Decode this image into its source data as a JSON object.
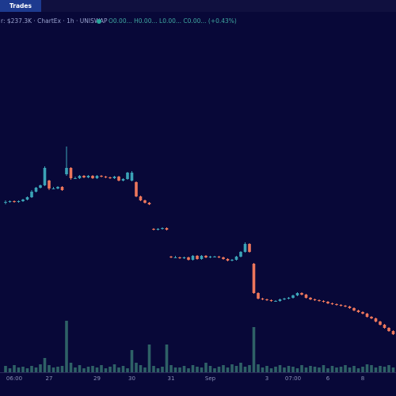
{
  "chart_data": {
    "type": "candlestick",
    "tab": "Trades",
    "title": "r: $237.3K · ChartEx · 1h · UNISWAP",
    "subtitle": "O0.00... H0.00... L0.00... C0.00... (+0.43%)",
    "up_color": "#3ba3b7",
    "down_color": "#ec765c",
    "volume_color": "#2e6166",
    "ylim": [
      0,
      440
    ],
    "vlim": [
      0,
      70
    ],
    "categories": [
      null,
      null,
      "06:00",
      null,
      null,
      null,
      null,
      null,
      null,
      null,
      "27",
      null,
      null,
      null,
      null,
      null,
      null,
      null,
      null,
      null,
      null,
      "29",
      null,
      null,
      null,
      null,
      null,
      null,
      null,
      "30",
      null,
      null,
      null,
      null,
      null,
      null,
      null,
      null,
      "31",
      null,
      null,
      null,
      null,
      null,
      null,
      null,
      null,
      "Sep",
      null,
      null,
      null,
      null,
      null,
      null,
      null,
      null,
      null,
      null,
      null,
      null,
      "3",
      null,
      null,
      null,
      null,
      null,
      "07:00",
      null,
      null,
      null,
      null,
      null,
      null,
      null,
      "6",
      null,
      null,
      null,
      null,
      null,
      null,
      null,
      "8",
      null,
      null,
      null,
      null,
      null,
      null,
      null
    ],
    "ohlc": [
      [
        224,
        227,
        222,
        225
      ],
      [
        225,
        227,
        224,
        226
      ],
      [
        226,
        227,
        224,
        225
      ],
      [
        225,
        227,
        224,
        226
      ],
      [
        226,
        229,
        225,
        228
      ],
      [
        228,
        232,
        227,
        231
      ],
      [
        231,
        240,
        230,
        238
      ],
      [
        238,
        244,
        237,
        243
      ],
      [
        243,
        247,
        242,
        246
      ],
      [
        246,
        270,
        245,
        268
      ],
      [
        252,
        253,
        240,
        242
      ],
      [
        242,
        244,
        241,
        242
      ],
      [
        242,
        245,
        241,
        244
      ],
      [
        244,
        245,
        239,
        240
      ],
      [
        260,
        295,
        258,
        268
      ],
      [
        268,
        269,
        253,
        255
      ],
      [
        255,
        257,
        254,
        255
      ],
      [
        255,
        259,
        254,
        258
      ],
      [
        258,
        259,
        255,
        256
      ],
      [
        256,
        259,
        255,
        258
      ],
      [
        258,
        259,
        254,
        255
      ],
      [
        255,
        259,
        254,
        258
      ],
      [
        258,
        259,
        256,
        257
      ],
      [
        257,
        258,
        255,
        256
      ],
      [
        256,
        257,
        254,
        255
      ],
      [
        255,
        258,
        254,
        257
      ],
      [
        257,
        258,
        251,
        252
      ],
      [
        252,
        255,
        251,
        254
      ],
      [
        254,
        263,
        253,
        262
      ],
      [
        252,
        264,
        251,
        262
      ],
      [
        250,
        251,
        231,
        232
      ],
      [
        232,
        233,
        226,
        227
      ],
      [
        227,
        228,
        223,
        224
      ],
      [
        224,
        225,
        221,
        222
      ],
      [
        191,
        192,
        189,
        190
      ],
      [
        190,
        192,
        189,
        191
      ],
      [
        191,
        193,
        190,
        192
      ],
      [
        192,
        193,
        189,
        190
      ],
      [
        156,
        157,
        154,
        155
      ],
      [
        155,
        157,
        154,
        155
      ],
      [
        155,
        156,
        153,
        154
      ],
      [
        154,
        156,
        153,
        155
      ],
      [
        155,
        156,
        151,
        152
      ],
      [
        152,
        158,
        151,
        157
      ],
      [
        157,
        158,
        152,
        153
      ],
      [
        153,
        158,
        152,
        157
      ],
      [
        157,
        158,
        154,
        155
      ],
      [
        155,
        157,
        154,
        156
      ],
      [
        156,
        157,
        155,
        156
      ],
      [
        156,
        157,
        154,
        155
      ],
      [
        155,
        156,
        152,
        153
      ],
      [
        153,
        154,
        150,
        151
      ],
      [
        151,
        153,
        150,
        152
      ],
      [
        152,
        157,
        151,
        156
      ],
      [
        156,
        163,
        155,
        162
      ],
      [
        162,
        174,
        161,
        172
      ],
      [
        172,
        173,
        161,
        162
      ],
      [
        147,
        148,
        109,
        110
      ],
      [
        110,
        111,
        102,
        103
      ],
      [
        103,
        104,
        101,
        102
      ],
      [
        102,
        103,
        100,
        101
      ],
      [
        101,
        102,
        99,
        100
      ],
      [
        100,
        101,
        99,
        100
      ],
      [
        100,
        103,
        99,
        102
      ],
      [
        102,
        104,
        101,
        103
      ],
      [
        103,
        105,
        102,
        104
      ],
      [
        104,
        108,
        103,
        107
      ],
      [
        107,
        111,
        106,
        110
      ],
      [
        110,
        111,
        107,
        108
      ],
      [
        108,
        109,
        103,
        104
      ],
      [
        104,
        105,
        101,
        102
      ],
      [
        102,
        103,
        100,
        101
      ],
      [
        101,
        102,
        99,
        100
      ],
      [
        100,
        101,
        98,
        99
      ],
      [
        99,
        100,
        96,
        97
      ],
      [
        97,
        98,
        95,
        96
      ],
      [
        96,
        97,
        94,
        95
      ],
      [
        95,
        96,
        93,
        94
      ],
      [
        94,
        95,
        92,
        93
      ],
      [
        93,
        94,
        90,
        91
      ],
      [
        91,
        92,
        87,
        88
      ],
      [
        88,
        89,
        85,
        86
      ],
      [
        86,
        87,
        83,
        84
      ],
      [
        84,
        85,
        79,
        80
      ],
      [
        80,
        81,
        77,
        78
      ],
      [
        78,
        79,
        73,
        74
      ],
      [
        74,
        75,
        69,
        70
      ],
      [
        70,
        71,
        65,
        66
      ],
      [
        66,
        67,
        61,
        62
      ],
      [
        62,
        63,
        57,
        58
      ]
    ],
    "volume": [
      8,
      5,
      9,
      6,
      7,
      5,
      8,
      6,
      10,
      18,
      9,
      6,
      7,
      8,
      65,
      12,
      6,
      9,
      5,
      7,
      8,
      6,
      9,
      5,
      7,
      10,
      6,
      8,
      5,
      28,
      12,
      9,
      6,
      35,
      8,
      5,
      7,
      35,
      9,
      6,
      6,
      8,
      5,
      9,
      7,
      6,
      12,
      8,
      5,
      7,
      9,
      6,
      10,
      8,
      12,
      7,
      9,
      57,
      10,
      6,
      8,
      5,
      7,
      9,
      6,
      8,
      7,
      5,
      9,
      6,
      8,
      7,
      6,
      9,
      5,
      8,
      6,
      7,
      9,
      6,
      8,
      5,
      7,
      10,
      9,
      6,
      8,
      7,
      9,
      6
    ]
  }
}
